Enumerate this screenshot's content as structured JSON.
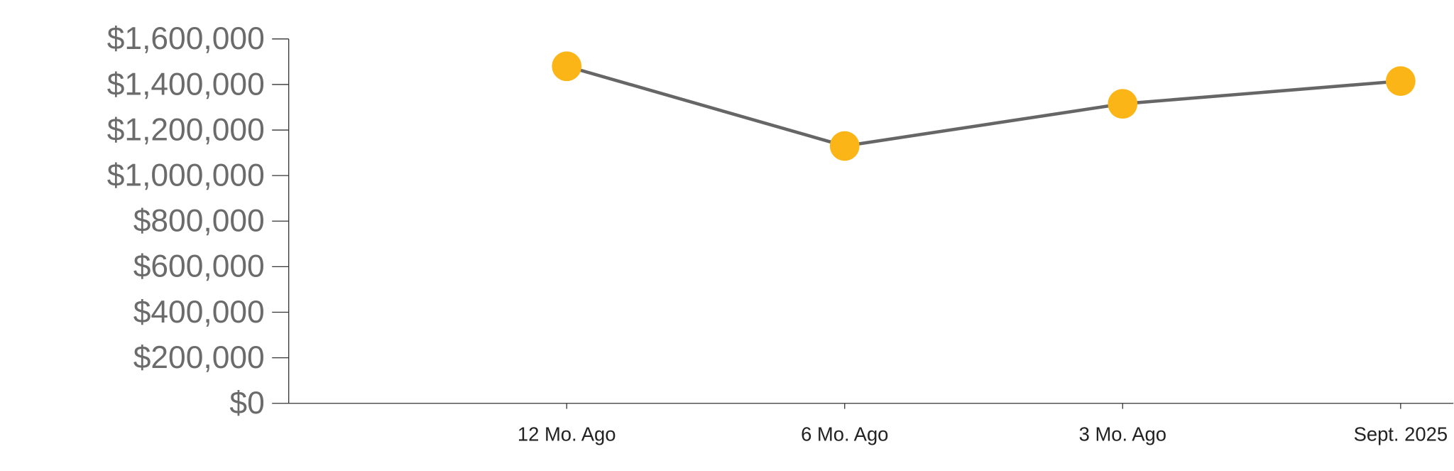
{
  "chart_data": {
    "type": "line",
    "categories": [
      null,
      "12 Mo. Ago",
      "6 Mo. Ago",
      "3 Mo. Ago",
      "Sept. 2025"
    ],
    "series": [
      {
        "name": null,
        "color": "#666666",
        "marker_color": "#fbb517",
        "values": [
          null,
          1480000,
          1130000,
          1315000,
          1415000
        ]
      }
    ],
    "ylim": [
      0,
      1600000
    ],
    "yticks": [
      {
        "value": 0,
        "label": "$0"
      },
      {
        "value": 200000,
        "label": "$200,000"
      },
      {
        "value": 400000,
        "label": "$400,000"
      },
      {
        "value": 600000,
        "label": "$600,000"
      },
      {
        "value": 800000,
        "label": "$800,000"
      },
      {
        "value": 1000000,
        "label": "$1,000,000"
      },
      {
        "value": 1200000,
        "label": "$1,200,000"
      },
      {
        "value": 1400000,
        "label": "$1,400,000"
      },
      {
        "value": 1600000,
        "label": "$1,600,000"
      }
    ]
  }
}
